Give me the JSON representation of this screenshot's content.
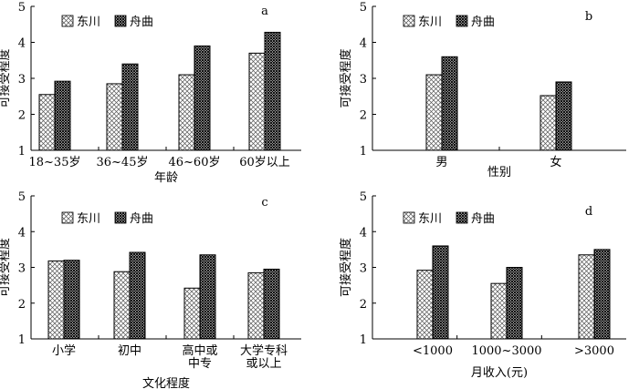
{
  "chart_data": [
    {
      "type": "bar",
      "panel_label": "a",
      "categories": [
        "18~35岁",
        "36~45岁",
        "46~60岁",
        "60岁以上"
      ],
      "xlabel": "年龄",
      "ylabel": "可接受程度",
      "ylim": [
        1,
        5
      ],
      "yticks": [
        "1",
        "2",
        "3",
        "4",
        "5"
      ],
      "legend": {
        "position": "top-left"
      },
      "series": [
        {
          "name": "东川",
          "pattern": "crosshatch-light",
          "values": [
            2.55,
            2.85,
            3.1,
            3.7
          ]
        },
        {
          "name": "舟曲",
          "pattern": "crosshatch-dark",
          "values": [
            2.92,
            3.4,
            3.9,
            4.28
          ]
        }
      ]
    },
    {
      "type": "bar",
      "panel_label": "b",
      "categories": [
        "男",
        "女"
      ],
      "xlabel": "性别",
      "ylabel": "可接受程度",
      "ylim": [
        1,
        5
      ],
      "yticks": [
        "1",
        "2",
        "3",
        "4",
        "5"
      ],
      "legend": {
        "position": "top-left"
      },
      "series": [
        {
          "name": "东川",
          "pattern": "crosshatch-light",
          "values": [
            3.1,
            2.52
          ]
        },
        {
          "name": "舟曲",
          "pattern": "crosshatch-dark",
          "values": [
            3.6,
            2.9
          ]
        }
      ]
    },
    {
      "type": "bar",
      "panel_label": "c",
      "categories": [
        "小学",
        "初中",
        "高中或中专",
        "大学专科或以上"
      ],
      "category_lines": [
        [
          "小学"
        ],
        [
          "初中"
        ],
        [
          "高中或",
          "中专"
        ],
        [
          "大学专科",
          "或以上"
        ]
      ],
      "xlabel": "文化程度",
      "ylabel": "可接受程度",
      "ylim": [
        1,
        5
      ],
      "yticks": [
        "1",
        "2",
        "3",
        "4",
        "5"
      ],
      "legend": {
        "position": "top-left"
      },
      "series": [
        {
          "name": "东川",
          "pattern": "crosshatch-light",
          "values": [
            3.18,
            2.88,
            2.42,
            2.85
          ]
        },
        {
          "name": "舟曲",
          "pattern": "crosshatch-dark",
          "values": [
            3.2,
            3.42,
            3.35,
            2.95
          ]
        }
      ]
    },
    {
      "type": "bar",
      "panel_label": "d",
      "categories": [
        "<1000",
        "1000~3000",
        ">3000"
      ],
      "xlabel": "月收入(元)",
      "ylabel": "可接受程度",
      "ylim": [
        1,
        5
      ],
      "yticks": [
        "1",
        "2",
        "3",
        "4",
        "5"
      ],
      "legend": {
        "position": "top-left"
      },
      "series": [
        {
          "name": "东川",
          "pattern": "crosshatch-light",
          "values": [
            2.92,
            2.55,
            3.35
          ]
        },
        {
          "name": "舟曲",
          "pattern": "crosshatch-dark",
          "values": [
            3.6,
            3.0,
            3.5
          ]
        }
      ]
    }
  ]
}
